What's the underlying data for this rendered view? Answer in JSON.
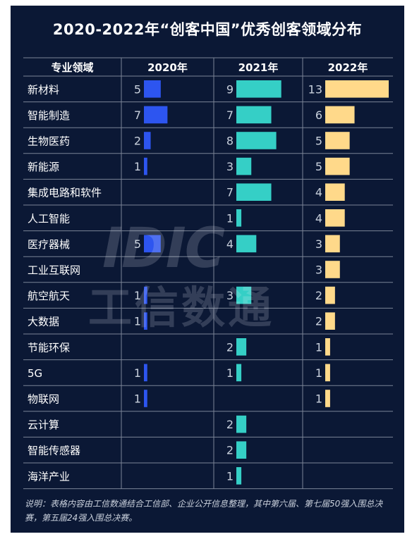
{
  "title": "2020-2022年“创客中国”优秀创客领域分布",
  "note": "说明：表格内容由工信数通结合工信部、企业公开信息整理，其中第六届、第七届50强入围总决赛，第五届24强入围总决赛。",
  "watermark": {
    "latin": "IDIC",
    "cn": "工信数通"
  },
  "colors": {
    "background": "#0b1835",
    "grid": "#7b8496",
    "text": "#ffffff",
    "value_text": "#c8d0dc",
    "y2020": "#2d55f0",
    "y2021": "#35cfc6",
    "y2022": "#ffd98a"
  },
  "chart_data": {
    "type": "table",
    "header_label": "专业领域",
    "categories": [
      "新材料",
      "智能制造",
      "生物医药",
      "新能源",
      "集成电路和软件",
      "人工智能",
      "医疗器械",
      "工业互联网",
      "航空航天",
      "大数据",
      "节能环保",
      "5G",
      "物联网",
      "云计算",
      "智能传感器",
      "海洋产业"
    ],
    "series": [
      {
        "name": "2020年",
        "values": [
          5,
          7,
          2,
          1,
          null,
          null,
          5,
          null,
          1,
          1,
          null,
          1,
          1,
          null,
          null,
          null
        ]
      },
      {
        "name": "2021年",
        "values": [
          9,
          7,
          8,
          3,
          7,
          1,
          4,
          null,
          3,
          null,
          2,
          1,
          null,
          2,
          2,
          1
        ]
      },
      {
        "name": "2022年",
        "values": [
          13,
          6,
          5,
          5,
          4,
          4,
          3,
          3,
          2,
          2,
          1,
          1,
          1,
          null,
          null,
          null
        ]
      }
    ]
  }
}
